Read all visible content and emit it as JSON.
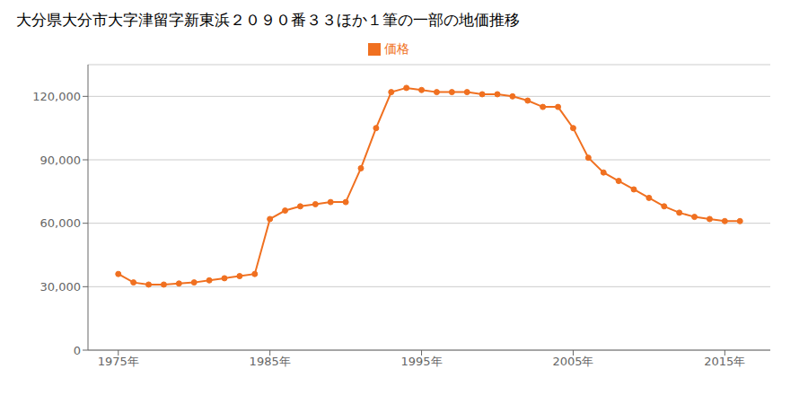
{
  "chart_data": {
    "type": "line",
    "title": "大分県大分市大字津留字新東浜２０９０番３３ほか１筆の一部の地価推移",
    "x": [
      1975,
      1976,
      1977,
      1978,
      1979,
      1980,
      1981,
      1982,
      1983,
      1984,
      1985,
      1986,
      1987,
      1988,
      1989,
      1990,
      1991,
      1992,
      1993,
      1994,
      1995,
      1996,
      1997,
      1998,
      1999,
      2000,
      2001,
      2002,
      2003,
      2004,
      2005,
      2006,
      2007,
      2008,
      2009,
      2010,
      2011,
      2012,
      2013,
      2014,
      2015,
      2016
    ],
    "series": [
      {
        "name": "価格",
        "color": "#f07020",
        "marker": "circle",
        "values": [
          36000,
          32000,
          31000,
          31000,
          31500,
          32000,
          33000,
          34000,
          35000,
          36000,
          62000,
          66000,
          68000,
          69000,
          70000,
          70000,
          86000,
          105000,
          122000,
          124000,
          123000,
          122000,
          122000,
          122000,
          121000,
          121000,
          120000,
          118000,
          115000,
          115000,
          105000,
          91000,
          84000,
          80000,
          76000,
          72000,
          68000,
          65000,
          63000,
          62000,
          61000,
          61000
        ]
      }
    ],
    "xlim": [
      1973,
      2018
    ],
    "xticks": [
      {
        "value": 1975,
        "label": "1975年"
      },
      {
        "value": 1985,
        "label": "1985年"
      },
      {
        "value": 1995,
        "label": "1995年"
      },
      {
        "value": 2005,
        "label": "2005年"
      },
      {
        "value": 2015,
        "label": "2015年"
      }
    ],
    "ylim": [
      0,
      135000
    ],
    "yticks": [
      0,
      {
        "value": 30000,
        "label": "30,000"
      },
      {
        "value": 60000,
        "label": "60,000"
      },
      {
        "value": 90000,
        "label": "90,000"
      },
      {
        "value": 120000,
        "label": "120,000"
      }
    ],
    "grid": "y",
    "legend": "top"
  }
}
